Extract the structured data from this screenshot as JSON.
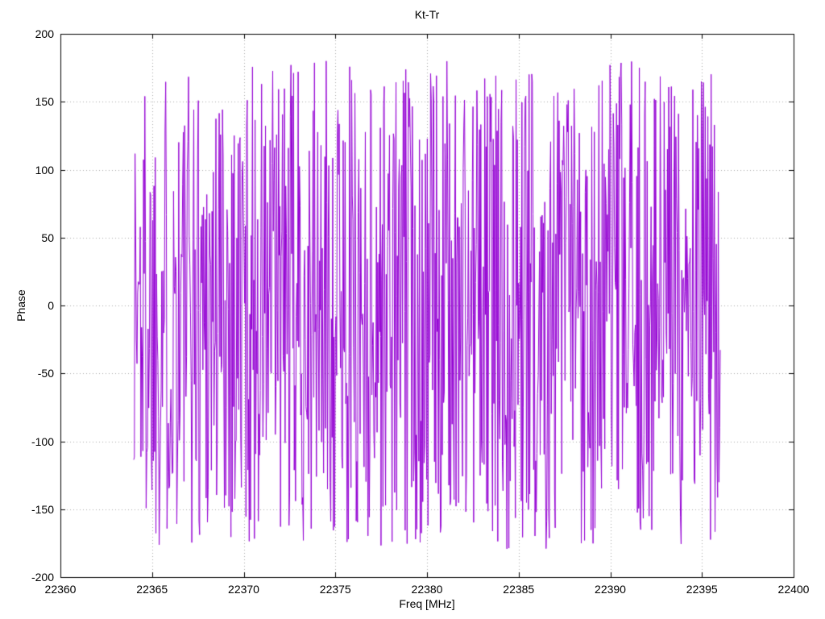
{
  "chart_data": {
    "type": "line",
    "title": "Kt-Tr",
    "xlabel": "Freq [MHz]",
    "ylabel": "Phase",
    "xlim": [
      22360,
      22400
    ],
    "ylim": [
      -200,
      200
    ],
    "x_ticks": [
      22360,
      22365,
      22370,
      22375,
      22380,
      22385,
      22390,
      22395,
      22400
    ],
    "y_ticks": [
      -200,
      -150,
      -100,
      -50,
      0,
      50,
      100,
      150,
      200
    ],
    "grid": true,
    "legend_position": "none",
    "line_color": "#9400d3",
    "grid_color": "#a8a8a8",
    "border_color": "#000000",
    "text_color": "#000000",
    "series": [
      {
        "name": "Kt-Tr phase",
        "x_start": 22364.0,
        "x_end": 22396.0,
        "n_points": 900,
        "y_distribution": "uniform-random wrapped phase (noise-like, fully decorrelated point to point)",
        "y_min": -180,
        "y_max": 180,
        "seed": 1337
      }
    ]
  }
}
